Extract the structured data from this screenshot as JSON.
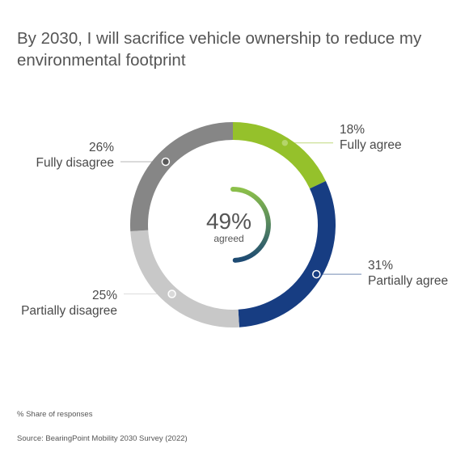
{
  "title": "By 2030, I will sacrifice vehicle ownership to reduce my environmental footprint",
  "note": "% Share of responses",
  "source": "Source: BearingPoint Mobility 2030 Survey (2022)",
  "chart_data": {
    "type": "pie",
    "donut": true,
    "categories": [
      "Fully agree",
      "Partially agree",
      "Partially disagree",
      "Fully disagree"
    ],
    "values": [
      18,
      31,
      25,
      26
    ],
    "value_labels": [
      "18%",
      "31%",
      "25%",
      "26%"
    ],
    "colors": [
      "#95c12b",
      "#173d82",
      "#c8c8c8",
      "#868686"
    ],
    "center": {
      "value": "49%",
      "label": "agreed",
      "gradient": [
        "#8cc04a",
        "#1d4a73"
      ]
    }
  }
}
